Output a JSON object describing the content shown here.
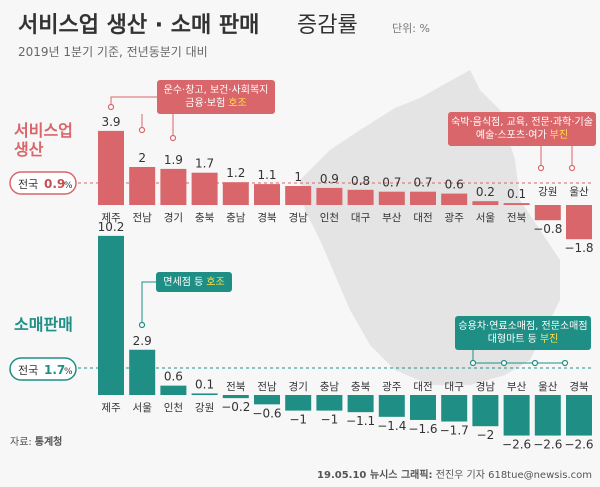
{
  "title": "서비스업 생산 · 소매 판매",
  "title_suffix": "증감률",
  "unit": "단위: %",
  "subtitle": "2019년 1분기 기준, 전년동분기 대비",
  "colors": {
    "service": "#d9666a",
    "retail": "#1f8f85",
    "highlight": "#ffe14d",
    "map": "#e3e3e3"
  },
  "national_label": "전국",
  "chart_data": [
    {
      "type": "bar",
      "title": "서비스업 생산",
      "national": {
        "value": "0.9",
        "unit": "%"
      },
      "categories": [
        "제주",
        "전남",
        "경기",
        "충북",
        "충남",
        "경북",
        "경남",
        "인천",
        "대구",
        "부산",
        "대전",
        "광주",
        "서울",
        "전북",
        "강원",
        "울산"
      ],
      "values": [
        3.9,
        2,
        1.9,
        1.7,
        1.2,
        1.1,
        1,
        0.9,
        0.8,
        0.7,
        0.7,
        0.6,
        0.2,
        0.1,
        -0.8,
        -1.8
      ],
      "labels": [
        "3.9",
        "2",
        "1.9",
        "1.7",
        "1.2",
        "1.1",
        "1",
        "0.9",
        "0.8",
        "0.7",
        "0.7",
        "0.6",
        "0.2",
        "0.1",
        "−0.8",
        "−1.8"
      ],
      "annotations": [
        {
          "text": [
            "운수·창고, 보건·사회복지",
            "금융·보험"
          ],
          "highlight": "호조"
        },
        {
          "text": [
            "숙박·음식점, 교육, 전문·과학·기술",
            "예술·스포츠·여가"
          ],
          "highlight": "부진"
        }
      ]
    },
    {
      "type": "bar",
      "title": "소매판매",
      "national": {
        "value": "1.7",
        "unit": "%"
      },
      "categories": [
        "제주",
        "서울",
        "인천",
        "강원",
        "전북",
        "전남",
        "경기",
        "충남",
        "충북",
        "광주",
        "대전",
        "대구",
        "경남",
        "부산",
        "울산",
        "경북"
      ],
      "values": [
        10.2,
        2.9,
        0.6,
        0.1,
        -0.2,
        -0.6,
        -1,
        -1,
        -1.1,
        -1.4,
        -1.6,
        -1.7,
        -2,
        -2.6,
        -2.6,
        -2.6
      ],
      "labels": [
        "10.2",
        "2.9",
        "0.6",
        "0.1",
        "−0.2",
        "−0.6",
        "−1",
        "−1",
        "−1.1",
        "−1.4",
        "−1.6",
        "−1.7",
        "−2",
        "−2.6",
        "−2.6",
        "−2.6"
      ],
      "annotations": [
        {
          "text": [
            "면세점 등"
          ],
          "highlight": "호조"
        },
        {
          "text": [
            "승용차·연료소매점, 전문소매점",
            "대형마트 등"
          ],
          "highlight": "부진"
        }
      ]
    }
  ],
  "footer": {
    "source_label": "자료:",
    "source": "통계청",
    "credit_prefix": "19.05.10 뉴시스 그래픽:",
    "credit_rest": " 전진우 기자 618tue@newsis.com"
  }
}
